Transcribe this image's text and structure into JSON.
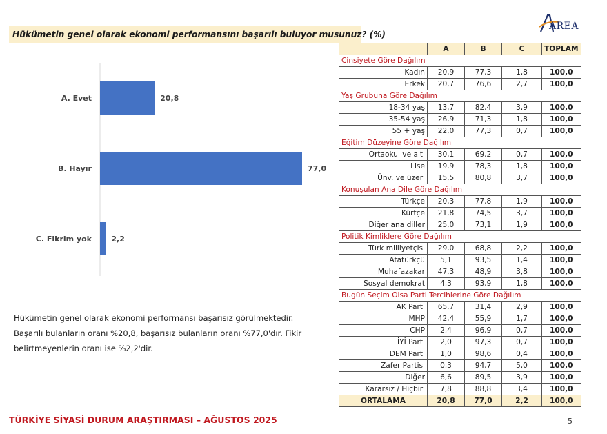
{
  "title": "Hükümetin genel olarak ekonomi performansını başarılı buluyor musunuz? (%)",
  "logo_text": "AREA",
  "chart_data": {
    "type": "bar",
    "orientation": "horizontal",
    "categories": [
      "A. Evet",
      "B. Hayır",
      "C. Fikrim yok"
    ],
    "values": [
      20.8,
      77.0,
      2.2
    ],
    "value_labels": [
      "20,8",
      "77,0",
      "2,2"
    ],
    "xlim": [
      0,
      77
    ],
    "bar_color": "#4472c4",
    "grid": false
  },
  "summary": [
    "Hükümetin genel olarak ekonomi performansı başarısız görülmektedir.",
    "Başarılı bulanların oranı %20,8, başarısız bulanların oranı %77,0'dır. Fikir",
    "belirtmeyenlerin oranı ise %2,2'dir."
  ],
  "table": {
    "headers": [
      "",
      "A",
      "B",
      "C",
      "TOPLAM"
    ],
    "sections": [
      {
        "title": "Cinsiyete Göre Dağılım",
        "rows": [
          {
            "label": "Kadın",
            "values": [
              "20,9",
              "77,3",
              "1,8",
              "100,0"
            ]
          },
          {
            "label": "Erkek",
            "values": [
              "20,7",
              "76,6",
              "2,7",
              "100,0"
            ]
          }
        ]
      },
      {
        "title": "Yaş Grubuna Göre Dağılım",
        "rows": [
          {
            "label": "18-34 yaş",
            "values": [
              "13,7",
              "82,4",
              "3,9",
              "100,0"
            ]
          },
          {
            "label": "35-54 yaş",
            "values": [
              "26,9",
              "71,3",
              "1,8",
              "100,0"
            ]
          },
          {
            "label": "55 + yaş",
            "values": [
              "22,0",
              "77,3",
              "0,7",
              "100,0"
            ]
          }
        ]
      },
      {
        "title": "Eğitim Düzeyine Göre Dağılım",
        "rows": [
          {
            "label": "Ortaokul ve altı",
            "values": [
              "30,1",
              "69,2",
              "0,7",
              "100,0"
            ]
          },
          {
            "label": "Lise",
            "values": [
              "19,9",
              "78,3",
              "1,8",
              "100,0"
            ]
          },
          {
            "label": "Ünv. ve üzeri",
            "values": [
              "15,5",
              "80,8",
              "3,7",
              "100,0"
            ]
          }
        ]
      },
      {
        "title": "Konuşulan Ana Dile Göre Dağılım",
        "rows": [
          {
            "label": "Türkçe",
            "values": [
              "20,3",
              "77,8",
              "1,9",
              "100,0"
            ]
          },
          {
            "label": "Kürtçe",
            "values": [
              "21,8",
              "74,5",
              "3,7",
              "100,0"
            ]
          },
          {
            "label": "Diğer ana diller",
            "values": [
              "25,0",
              "73,1",
              "1,9",
              "100,0"
            ]
          }
        ]
      },
      {
        "title": "Politik Kimliklere Göre Dağılım",
        "rows": [
          {
            "label": "Türk milliyetçisi",
            "values": [
              "29,0",
              "68,8",
              "2,2",
              "100,0"
            ]
          },
          {
            "label": "Atatürkçü",
            "values": [
              "5,1",
              "93,5",
              "1,4",
              "100,0"
            ]
          },
          {
            "label": "Muhafazakar",
            "values": [
              "47,3",
              "48,9",
              "3,8",
              "100,0"
            ]
          },
          {
            "label": "Sosyal demokrat",
            "values": [
              "4,3",
              "93,9",
              "1,8",
              "100,0"
            ]
          }
        ]
      },
      {
        "title": "Bugün Seçim Olsa Parti Tercihlerine Göre Dağılım",
        "rows": [
          {
            "label": "AK Parti",
            "values": [
              "65,7",
              "31,4",
              "2,9",
              "100,0"
            ]
          },
          {
            "label": "MHP",
            "values": [
              "42,4",
              "55,9",
              "1,7",
              "100,0"
            ]
          },
          {
            "label": "CHP",
            "values": [
              "2,4",
              "96,9",
              "0,7",
              "100,0"
            ]
          },
          {
            "label": "İYİ Parti",
            "values": [
              "2,0",
              "97,3",
              "0,7",
              "100,0"
            ]
          },
          {
            "label": "DEM Parti",
            "values": [
              "1,0",
              "98,6",
              "0,4",
              "100,0"
            ]
          },
          {
            "label": "Zafer Partisi",
            "values": [
              "0,3",
              "94,7",
              "5,0",
              "100,0"
            ]
          },
          {
            "label": "Diğer",
            "values": [
              "6,6",
              "89,5",
              "3,9",
              "100,0"
            ]
          },
          {
            "label": "Kararsız / Hiçbiri",
            "values": [
              "7,8",
              "88,8",
              "3,4",
              "100,0"
            ]
          }
        ]
      }
    ],
    "average": {
      "label": "ORTALAMA",
      "values": [
        "20,8",
        "77,0",
        "2,2",
        "100,0"
      ]
    }
  },
  "footer": "TÜRKİYE SİYASİ DURUM ARAŞTIRMASI – AĞUSTOS 2025",
  "page_number": "5"
}
